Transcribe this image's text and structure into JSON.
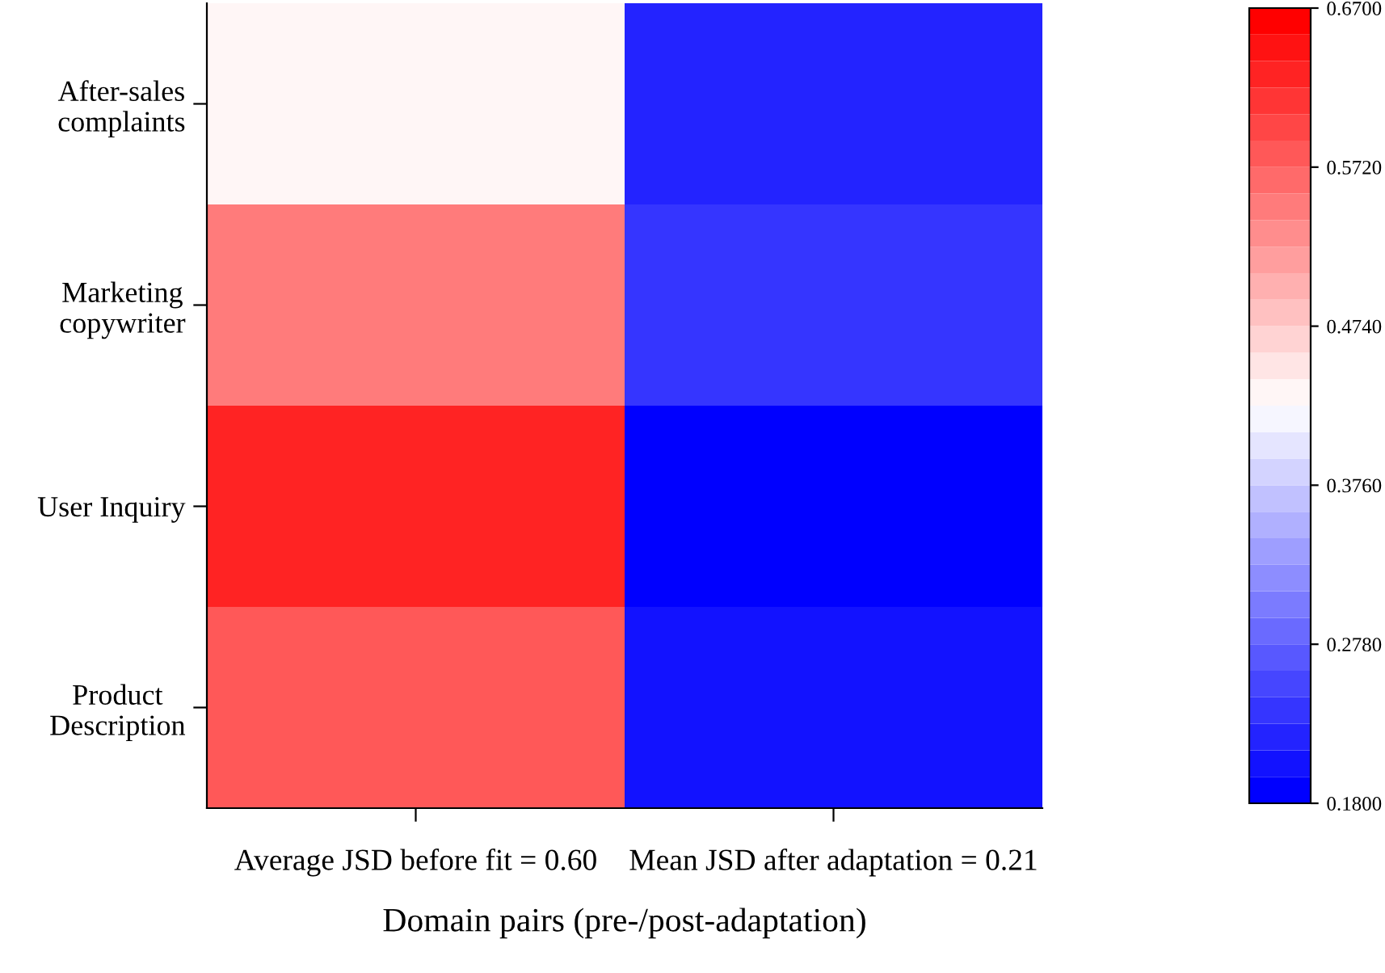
{
  "chart_data": {
    "type": "heatmap",
    "categories": [
      "Average JSD before fit = 0.60",
      "Mean JSD after adaptation = 0.21"
    ],
    "y_categories": [
      "After-sales\ncomplaints",
      "Marketing\ncopywriter",
      "User Inquiry",
      "Product\nDescription"
    ],
    "cells": [
      [
        0.43,
        0.215
      ],
      [
        0.555,
        0.235
      ],
      [
        0.635,
        0.185
      ],
      [
        0.575,
        0.2
      ]
    ],
    "xlabel": "Domain pairs (pre-/post-adaptation)",
    "clim": [
      0.18,
      0.67
    ],
    "cticks": [
      {
        "value": 0.18,
        "label": "0.1800"
      },
      {
        "value": 0.278,
        "label": "0.2780"
      },
      {
        "value": 0.376,
        "label": "0.3760"
      },
      {
        "value": 0.474,
        "label": "0.4740"
      },
      {
        "value": 0.572,
        "label": "0.5720"
      },
      {
        "value": 0.67,
        "label": "0.6700"
      }
    ]
  }
}
